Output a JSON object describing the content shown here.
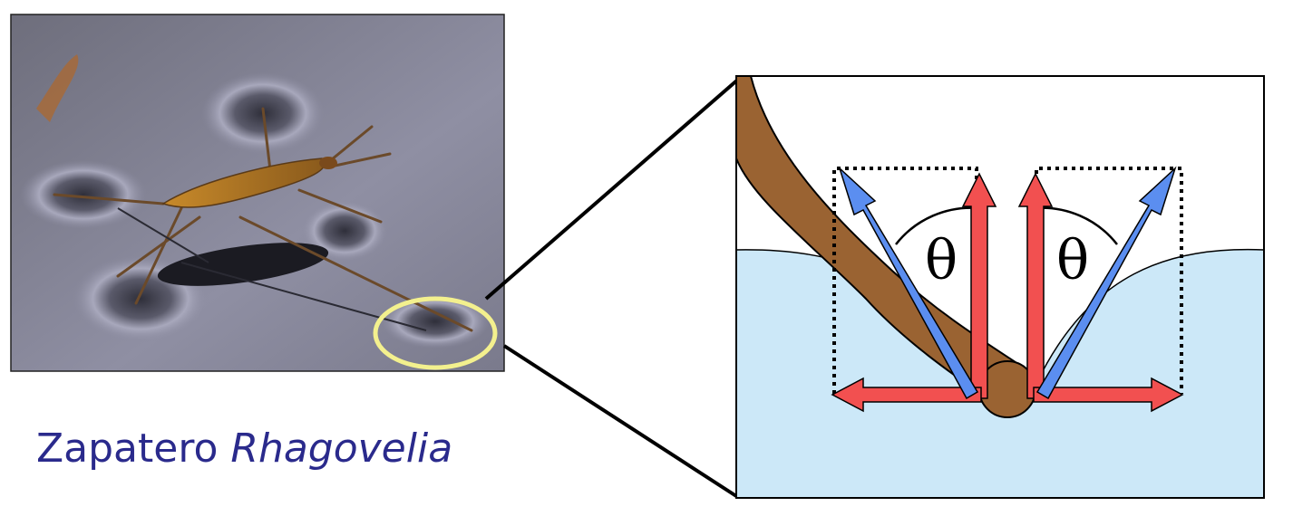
{
  "caption": {
    "common_name": "Zapatero",
    "genus": "Rhagovelia"
  },
  "diagram": {
    "angle_symbol_left": "θ",
    "angle_symbol_right": "θ"
  },
  "colors": {
    "water": "#cce8f8",
    "leg": "#9a6332",
    "force_red": "#f25050",
    "force_blue": "#5b8ef0",
    "highlight_ring": "#f3f08e",
    "caption_text": "#2a2a8c"
  }
}
